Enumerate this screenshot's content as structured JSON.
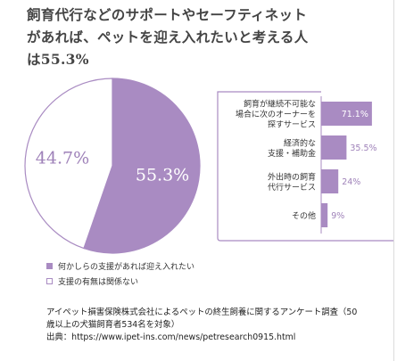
{
  "headline": {
    "line1": "飼育代行などのサポートやセーフティネット",
    "line2": "があれば、ペットを迎え入れたいと考える人",
    "line3": "は55.3%"
  },
  "colors": {
    "accent": "#a98bc2",
    "accent_text": "#9f82b9",
    "muted": "#777777",
    "axis": "#a98bc2"
  },
  "chart_data": [
    {
      "type": "pie",
      "slices": [
        {
          "label": "何かしらの支援があれば迎え入れたい",
          "value": 55.3,
          "display": "55.3%",
          "color": "#a98bc2"
        },
        {
          "label": "支援の有無は関係ない",
          "value": 44.7,
          "display": "44.7%",
          "color": "#ffffff"
        }
      ],
      "legend_position": "bottom-left"
    },
    {
      "type": "bar",
      "orientation": "horizontal",
      "categories": [
        [
          "飼育が継続不可能な",
          "場合に次のオーナーを",
          "探すサービス"
        ],
        [
          "経済的な",
          "支援・補助金"
        ],
        [
          "外出時の飼育",
          "代行サービス"
        ],
        [
          "その他"
        ]
      ],
      "values": [
        71.1,
        35.5,
        24,
        9
      ],
      "value_labels": [
        "71.1%",
        "35.5%",
        "24%",
        "9%"
      ],
      "xlim": [
        0,
        100
      ]
    }
  ],
  "legend": {
    "items": [
      {
        "label": "何かしらの支援があれば迎え入れたい",
        "swatch": "filled"
      },
      {
        "label": "支援の有無は関係ない",
        "swatch": "empty"
      }
    ]
  },
  "footnote": {
    "line1": "アイペット損害保険株式会社によるペットの終生飼養に関するアンケート調査（50",
    "line2": "歳以上の犬猫飼育者534名を対象）",
    "line3": "出典：https://www.ipet-ins.com/news/petresearch0915.html"
  }
}
